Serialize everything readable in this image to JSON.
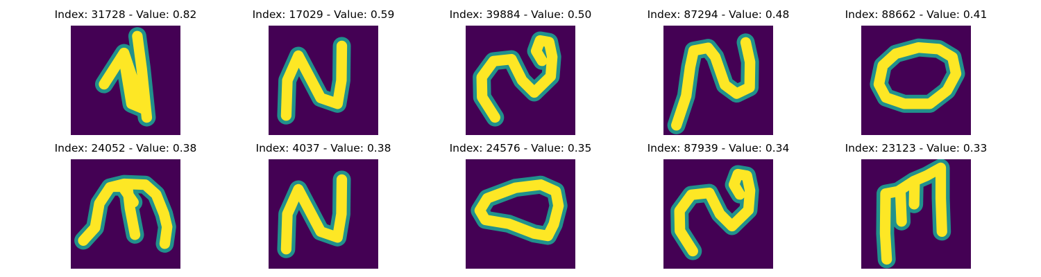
{
  "colors": {
    "background": "#440154",
    "mid": "#21918c",
    "stroke": "#fde725"
  },
  "chart_data": {
    "type": "image-grid",
    "title": "",
    "rows": 2,
    "cols": 5,
    "panels": [
      {
        "title": "Index: 31728 - Value: 0.82",
        "index": 31728,
        "value": 0.82,
        "glyph": "N-tilt"
      },
      {
        "title": "Index: 17029 - Value: 0.59",
        "index": 17029,
        "value": 0.59,
        "glyph": "N"
      },
      {
        "title": "Index: 39884 - Value: 0.50",
        "index": 39884,
        "value": 0.5,
        "glyph": "wave"
      },
      {
        "title": "Index: 87294 - Value: 0.48",
        "index": 87294,
        "value": 0.48,
        "glyph": "N-thin"
      },
      {
        "title": "Index: 88662 - Value: 0.41",
        "index": 88662,
        "value": 0.41,
        "glyph": "O"
      },
      {
        "title": "Index: 24052 - Value: 0.38",
        "index": 24052,
        "value": 0.38,
        "glyph": "M-arch"
      },
      {
        "title": "Index: 4037 - Value: 0.38",
        "index": 4037,
        "value": 0.38,
        "glyph": "N"
      },
      {
        "title": "Index: 24576 - Value: 0.35",
        "index": 24576,
        "value": 0.35,
        "glyph": "loop"
      },
      {
        "title": "Index: 87939 - Value: 0.34",
        "index": 87939,
        "value": 0.34,
        "glyph": "wave"
      },
      {
        "title": "Index: 23123 - Value: 0.33",
        "index": 23123,
        "value": 0.33,
        "glyph": "M-box"
      }
    ]
  }
}
